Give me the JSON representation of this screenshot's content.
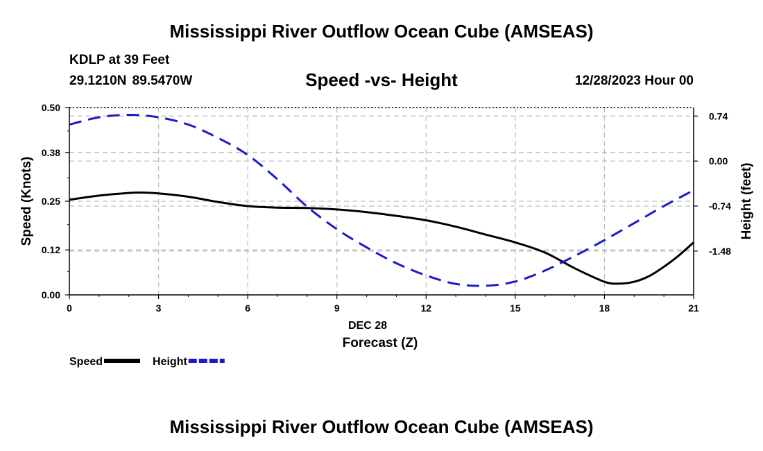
{
  "header": {
    "title": "Mississippi River Outflow Ocean Cube (AMSEAS)",
    "station": "KDLP at 39 Feet",
    "coordinates": "29.1210N  89.5470W",
    "subtitle": "Speed -vs- Height",
    "datetime": "12/28/2023 Hour 00"
  },
  "footer": {
    "title": "Mississippi River Outflow Ocean Cube (AMSEAS)"
  },
  "chart_data": {
    "type": "line",
    "title": "Speed -vs- Height",
    "xlabel": "Forecast (Z)",
    "xdate_label": "DEC 28",
    "ylabel_left": "Speed (Knots)",
    "ylabel_right": "Height (feet)",
    "x_ticks": [
      0,
      3,
      6,
      9,
      12,
      15,
      18,
      21
    ],
    "x_tick_labels": [
      "0",
      "3",
      "6",
      "9",
      "12",
      "15",
      "18",
      "21"
    ],
    "xlim": [
      0,
      21
    ],
    "ylim_left": [
      0,
      0.5
    ],
    "left_ticks": [
      0.0,
      0.12,
      0.25,
      0.38,
      0.5
    ],
    "left_tick_labels": [
      "0.00",
      "0.12",
      "0.25",
      "0.38",
      "0.50"
    ],
    "ylim_right": [
      -2.2,
      0.88
    ],
    "right_ticks": [
      0.74,
      0.0,
      -0.74,
      -1.48
    ],
    "right_tick_labels": [
      "0.74",
      "0.00",
      "-0.74",
      "-1.48"
    ],
    "grid": true,
    "legend_position": "bottom-left",
    "series": [
      {
        "name": "Speed",
        "axis": "left",
        "color": "#000000",
        "dash": "solid",
        "x": [
          0,
          1,
          2,
          2.5,
          3,
          4,
          5,
          6,
          7,
          8,
          9,
          10,
          11,
          12,
          13,
          14,
          15,
          16,
          17,
          18,
          18.5,
          19,
          19.5,
          20,
          20.5,
          21
        ],
        "values": [
          0.254,
          0.265,
          0.272,
          0.273,
          0.271,
          0.262,
          0.248,
          0.237,
          0.233,
          0.232,
          0.228,
          0.221,
          0.211,
          0.199,
          0.182,
          0.161,
          0.14,
          0.113,
          0.071,
          0.035,
          0.03,
          0.035,
          0.05,
          0.075,
          0.105,
          0.14
        ]
      },
      {
        "name": "Height",
        "axis": "right",
        "color": "#1a1ac8",
        "dash": "dashed",
        "x": [
          0,
          1,
          2,
          3,
          4,
          5,
          6,
          7,
          8,
          9,
          10,
          11,
          12,
          13,
          14,
          15,
          16,
          17,
          18,
          19,
          20,
          21
        ],
        "values": [
          0.6,
          0.72,
          0.76,
          0.72,
          0.6,
          0.38,
          0.1,
          -0.3,
          -0.75,
          -1.12,
          -1.42,
          -1.68,
          -1.88,
          -2.02,
          -2.05,
          -1.98,
          -1.8,
          -1.56,
          -1.3,
          -1.02,
          -0.74,
          -0.48
        ]
      }
    ]
  }
}
